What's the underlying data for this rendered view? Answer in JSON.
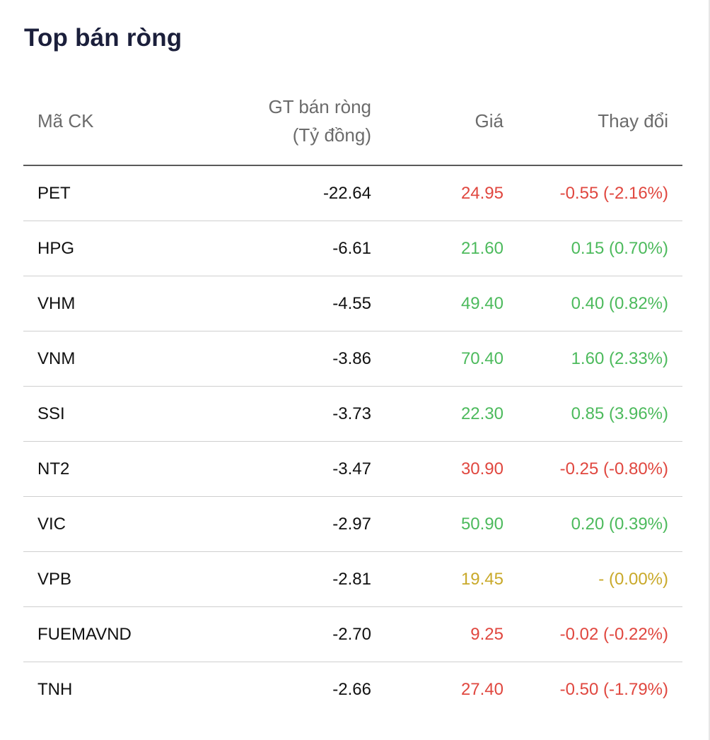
{
  "title": "Top bán ròng",
  "colors": {
    "down": "#e0473f",
    "up": "#4cba5c",
    "ref": "#c9a92a",
    "text": "#111111",
    "header": "#6b6b6b"
  },
  "table": {
    "headers": {
      "code": "Mã CK",
      "value_line1": "GT bán ròng",
      "value_line2": "(Tỷ đồng)",
      "price": "Giá",
      "change": "Thay đổi"
    },
    "rows": [
      {
        "code": "PET",
        "value": "-22.64",
        "price": "24.95",
        "change": "-0.55 (-2.16%)",
        "trend": "down"
      },
      {
        "code": "HPG",
        "value": "-6.61",
        "price": "21.60",
        "change": "0.15 (0.70%)",
        "trend": "up"
      },
      {
        "code": "VHM",
        "value": "-4.55",
        "price": "49.40",
        "change": "0.40 (0.82%)",
        "trend": "up"
      },
      {
        "code": "VNM",
        "value": "-3.86",
        "price": "70.40",
        "change": "1.60 (2.33%)",
        "trend": "up"
      },
      {
        "code": "SSI",
        "value": "-3.73",
        "price": "22.30",
        "change": "0.85 (3.96%)",
        "trend": "up"
      },
      {
        "code": "NT2",
        "value": "-3.47",
        "price": "30.90",
        "change": "-0.25 (-0.80%)",
        "trend": "down"
      },
      {
        "code": "VIC",
        "value": "-2.97",
        "price": "50.90",
        "change": "0.20 (0.39%)",
        "trend": "up"
      },
      {
        "code": "VPB",
        "value": "-2.81",
        "price": "19.45",
        "change": "- (0.00%)",
        "trend": "ref"
      },
      {
        "code": "FUEMAVND",
        "value": "-2.70",
        "price": "9.25",
        "change": "-0.02 (-0.22%)",
        "trend": "down"
      },
      {
        "code": "TNH",
        "value": "-2.66",
        "price": "27.40",
        "change": "-0.50 (-1.79%)",
        "trend": "down"
      }
    ]
  }
}
